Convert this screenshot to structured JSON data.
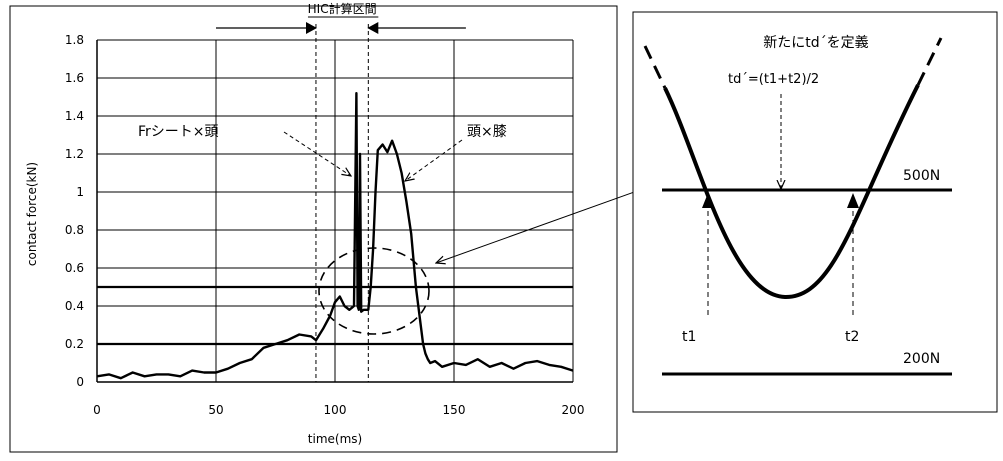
{
  "chart_data": [
    {
      "type": "line",
      "xlabel": "time(ms)",
      "ylabel": "contact force(kN)",
      "xlim": [
        0,
        200
      ],
      "ylim": [
        0,
        1.8
      ],
      "x_ticks": [
        0,
        50,
        100,
        150,
        200
      ],
      "y_ticks": [
        0,
        0.2,
        0.4,
        0.6,
        0.8,
        1,
        1.2,
        1.4,
        1.6,
        1.8
      ],
      "x_tick_labels": [
        "0",
        "50",
        "100",
        "150",
        "200"
      ],
      "y_tick_labels": [
        "0",
        "0.2",
        "0.4",
        "0.6",
        "0.8",
        "1",
        "1.2",
        "1.4",
        "1.6",
        "1.8"
      ],
      "grid": true,
      "threshold_lines": [
        0.5,
        0.2
      ],
      "hic_interval": {
        "label": "HIC計算区間",
        "start": 92,
        "end": 114
      },
      "series": [
        {
          "x": [
            0,
            5,
            10,
            15,
            20,
            25,
            30,
            35,
            40,
            45,
            50,
            55,
            60,
            65,
            70,
            75,
            80,
            85,
            90,
            92,
            95,
            98,
            100,
            102,
            104,
            106,
            107,
            108,
            109,
            109.5,
            110,
            110.5,
            111,
            112,
            114,
            115,
            116,
            117,
            118,
            120,
            122,
            124,
            126,
            128,
            130,
            132,
            134,
            136,
            137,
            138,
            139,
            140,
            142,
            145,
            150,
            155,
            160,
            165,
            170,
            175,
            180,
            185,
            190,
            195,
            200
          ],
          "y": [
            0.03,
            0.04,
            0.02,
            0.05,
            0.03,
            0.04,
            0.04,
            0.03,
            0.06,
            0.05,
            0.05,
            0.07,
            0.1,
            0.12,
            0.18,
            0.2,
            0.22,
            0.25,
            0.24,
            0.22,
            0.28,
            0.35,
            0.42,
            0.45,
            0.4,
            0.38,
            0.39,
            0.4,
            1.52,
            0.4,
            0.38,
            1.2,
            0.37,
            0.38,
            0.38,
            0.5,
            0.7,
            1.0,
            1.22,
            1.25,
            1.21,
            1.27,
            1.2,
            1.1,
            0.95,
            0.78,
            0.5,
            0.3,
            0.2,
            0.15,
            0.12,
            0.1,
            0.11,
            0.08,
            0.1,
            0.09,
            0.12,
            0.08,
            0.1,
            0.07,
            0.1,
            0.11,
            0.09,
            0.08,
            0.06
          ]
        }
      ],
      "annotations": [
        {
          "text": "Frシート×頭",
          "x": 109,
          "y": 1.52
        },
        {
          "text": "頭×膝",
          "x": 126,
          "y": 1.0
        }
      ]
    },
    {
      "type": "diagram",
      "title": "新たにtd´を定義",
      "formula": "td´=(t1+t2)/2",
      "levels": [
        "500N",
        "200N"
      ],
      "markers": [
        "t1",
        "t2"
      ]
    }
  ]
}
